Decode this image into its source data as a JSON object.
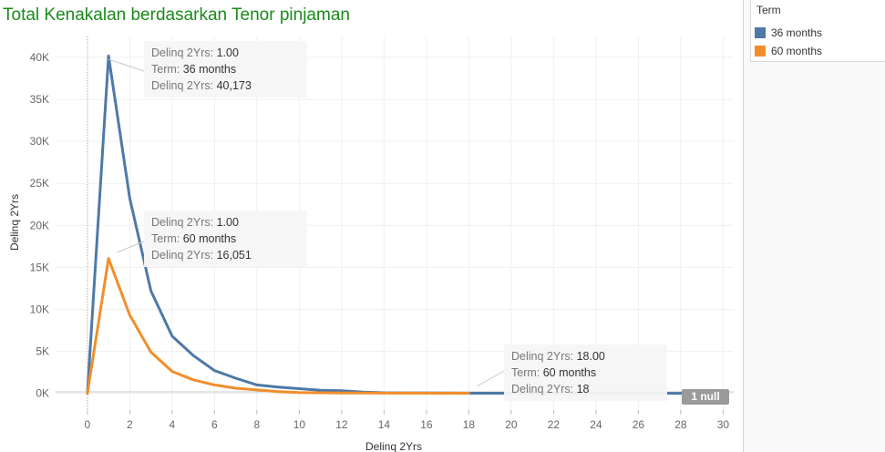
{
  "title": "Total Kenakalan berdasarkan Tenor pinjaman",
  "legend": {
    "title": "Term",
    "items": [
      {
        "label": "36 months",
        "color": "#4e79a7"
      },
      {
        "label": "60 months",
        "color": "#f28e2b"
      }
    ]
  },
  "tooltips": [
    {
      "l1": "Delinq 2Yrs:",
      "v1": "1.00",
      "l2": "Term:",
      "v2": "36 months",
      "l3": "Delinq 2Yrs:",
      "v3": "40,173"
    },
    {
      "l1": "Delinq 2Yrs:",
      "v1": "1.00",
      "l2": "Term:",
      "v2": "60 months",
      "l3": "Delinq 2Yrs:",
      "v3": "16,051"
    },
    {
      "l1": "Delinq 2Yrs:",
      "v1": "18.00",
      "l2": "Term:",
      "v2": "60 months",
      "l3": "Delinq 2Yrs:",
      "v3": "18"
    }
  ],
  "null_badge": "1 null",
  "chart_data": {
    "type": "line",
    "title": "Total Kenakalan berdasarkan Tenor pinjaman",
    "xlabel": "Delinq 2Yrs",
    "ylabel": "Delinq 2Yrs",
    "xlim": [
      -1.5,
      30.5
    ],
    "ylim": [
      -2000,
      42500
    ],
    "x_ticks": [
      0,
      2,
      4,
      6,
      8,
      10,
      12,
      14,
      16,
      18,
      20,
      22,
      24,
      26,
      28,
      30
    ],
    "y_ticks": [
      0,
      5000,
      10000,
      15000,
      20000,
      25000,
      30000,
      35000,
      40000
    ],
    "y_tick_labels": [
      "0K",
      "5K",
      "10K",
      "15K",
      "20K",
      "25K",
      "30K",
      "35K",
      "40K"
    ],
    "grid": true,
    "legend_position": "right",
    "series": [
      {
        "name": "36 months",
        "color": "#4e79a7",
        "x": [
          0,
          1,
          2,
          3,
          4,
          5,
          6,
          7,
          8,
          9,
          10,
          11,
          12,
          13,
          14,
          15,
          16,
          17,
          18,
          19,
          20,
          21,
          22,
          23,
          24,
          25,
          26,
          27,
          28,
          29
        ],
        "y": [
          0,
          40173,
          23200,
          12200,
          6800,
          4500,
          2700,
          1800,
          1000,
          750,
          550,
          350,
          300,
          150,
          60,
          40,
          30,
          20,
          10,
          8,
          6,
          5,
          4,
          3,
          3,
          2,
          2,
          1,
          1,
          1
        ]
      },
      {
        "name": "60 months",
        "color": "#f28e2b",
        "x": [
          0,
          1,
          2,
          3,
          4,
          5,
          6,
          7,
          8,
          9,
          10,
          11,
          12,
          13,
          14,
          15,
          16,
          17,
          18
        ],
        "y": [
          0,
          16051,
          9300,
          4900,
          2600,
          1600,
          1000,
          600,
          400,
          200,
          100,
          60,
          40,
          30,
          20,
          15,
          10,
          8,
          18
        ]
      }
    ]
  }
}
